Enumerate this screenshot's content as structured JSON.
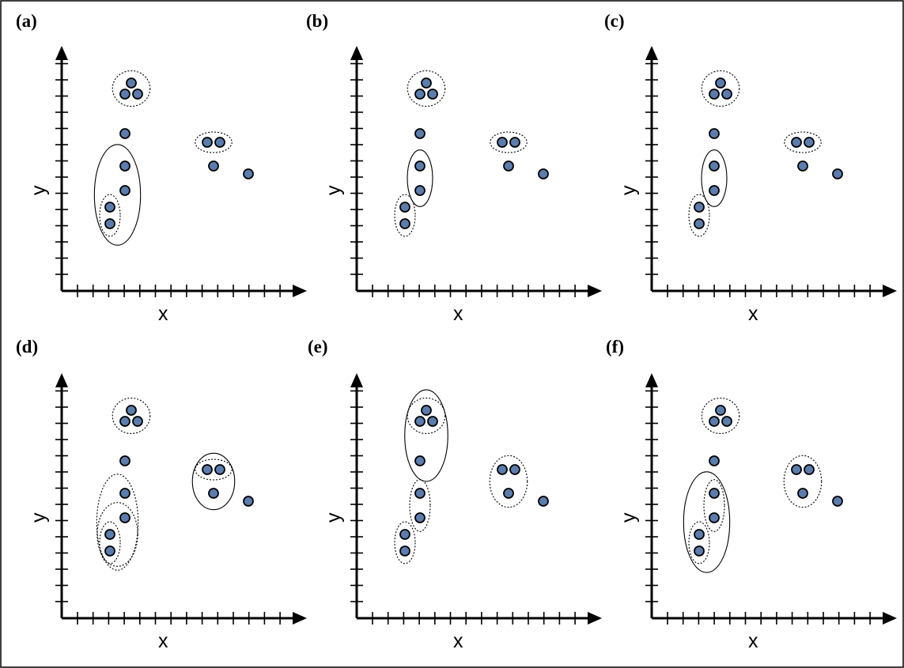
{
  "figure": {
    "point_color": "#5b7dad",
    "panels": [
      {
        "label": "(a)",
        "xlabel": "x",
        "ylabel": "y",
        "groups": [
          {
            "style": "dotted",
            "members": [
              0,
              1
            ]
          },
          {
            "style": "solid",
            "members": [
              0,
              1,
              2,
              3
            ]
          },
          {
            "style": "dotted",
            "members": [
              5,
              6,
              7
            ]
          },
          {
            "style": "dotted",
            "members": [
              8,
              9
            ]
          }
        ]
      },
      {
        "label": "(b)",
        "xlabel": "x",
        "ylabel": "y",
        "groups": [
          {
            "style": "dotted",
            "members": [
              0,
              1
            ]
          },
          {
            "style": "solid",
            "members": [
              2,
              3
            ]
          },
          {
            "style": "dotted",
            "members": [
              5,
              6,
              7
            ]
          },
          {
            "style": "dotted",
            "members": [
              8,
              9
            ]
          }
        ]
      },
      {
        "label": "(c)",
        "xlabel": "x",
        "ylabel": "y",
        "groups": [
          {
            "style": "dotted",
            "members": [
              0,
              1
            ]
          },
          {
            "style": "solid",
            "members": [
              2,
              3
            ]
          },
          {
            "style": "dotted",
            "members": [
              5,
              6,
              7
            ]
          },
          {
            "style": "dotted",
            "members": [
              8,
              9
            ]
          }
        ]
      },
      {
        "label": "(d)",
        "xlabel": "x",
        "ylabel": "y",
        "groups": [
          {
            "style": "dotted",
            "members": [
              0,
              1
            ]
          },
          {
            "style": "dotted",
            "members": [
              0,
              1,
              2
            ]
          },
          {
            "style": "dotted",
            "members": [
              0,
              1,
              2,
              3
            ]
          },
          {
            "style": "dotted",
            "members": [
              5,
              6,
              7
            ]
          },
          {
            "style": "dotted",
            "members": [
              8,
              9
            ]
          },
          {
            "style": "solid",
            "members": [
              8,
              9,
              10
            ]
          }
        ]
      },
      {
        "label": "(e)",
        "xlabel": "x",
        "ylabel": "y",
        "groups": [
          {
            "style": "dotted",
            "members": [
              0,
              1
            ]
          },
          {
            "style": "dotted",
            "members": [
              2,
              3
            ]
          },
          {
            "style": "dotted",
            "members": [
              5,
              6,
              7
            ]
          },
          {
            "style": "solid",
            "members": [
              4,
              5,
              6,
              7
            ]
          },
          {
            "style": "dotted",
            "members": [
              8,
              9,
              10
            ]
          }
        ]
      },
      {
        "label": "(f)",
        "xlabel": "x",
        "ylabel": "y",
        "groups": [
          {
            "style": "dotted",
            "members": [
              0,
              1
            ]
          },
          {
            "style": "dotted",
            "members": [
              2,
              3
            ]
          },
          {
            "style": "solid",
            "members": [
              0,
              1,
              2,
              3
            ]
          },
          {
            "style": "dotted",
            "members": [
              5,
              6,
              7
            ]
          },
          {
            "style": "dotted",
            "members": [
              8,
              9,
              10
            ]
          }
        ]
      }
    ]
  }
}
